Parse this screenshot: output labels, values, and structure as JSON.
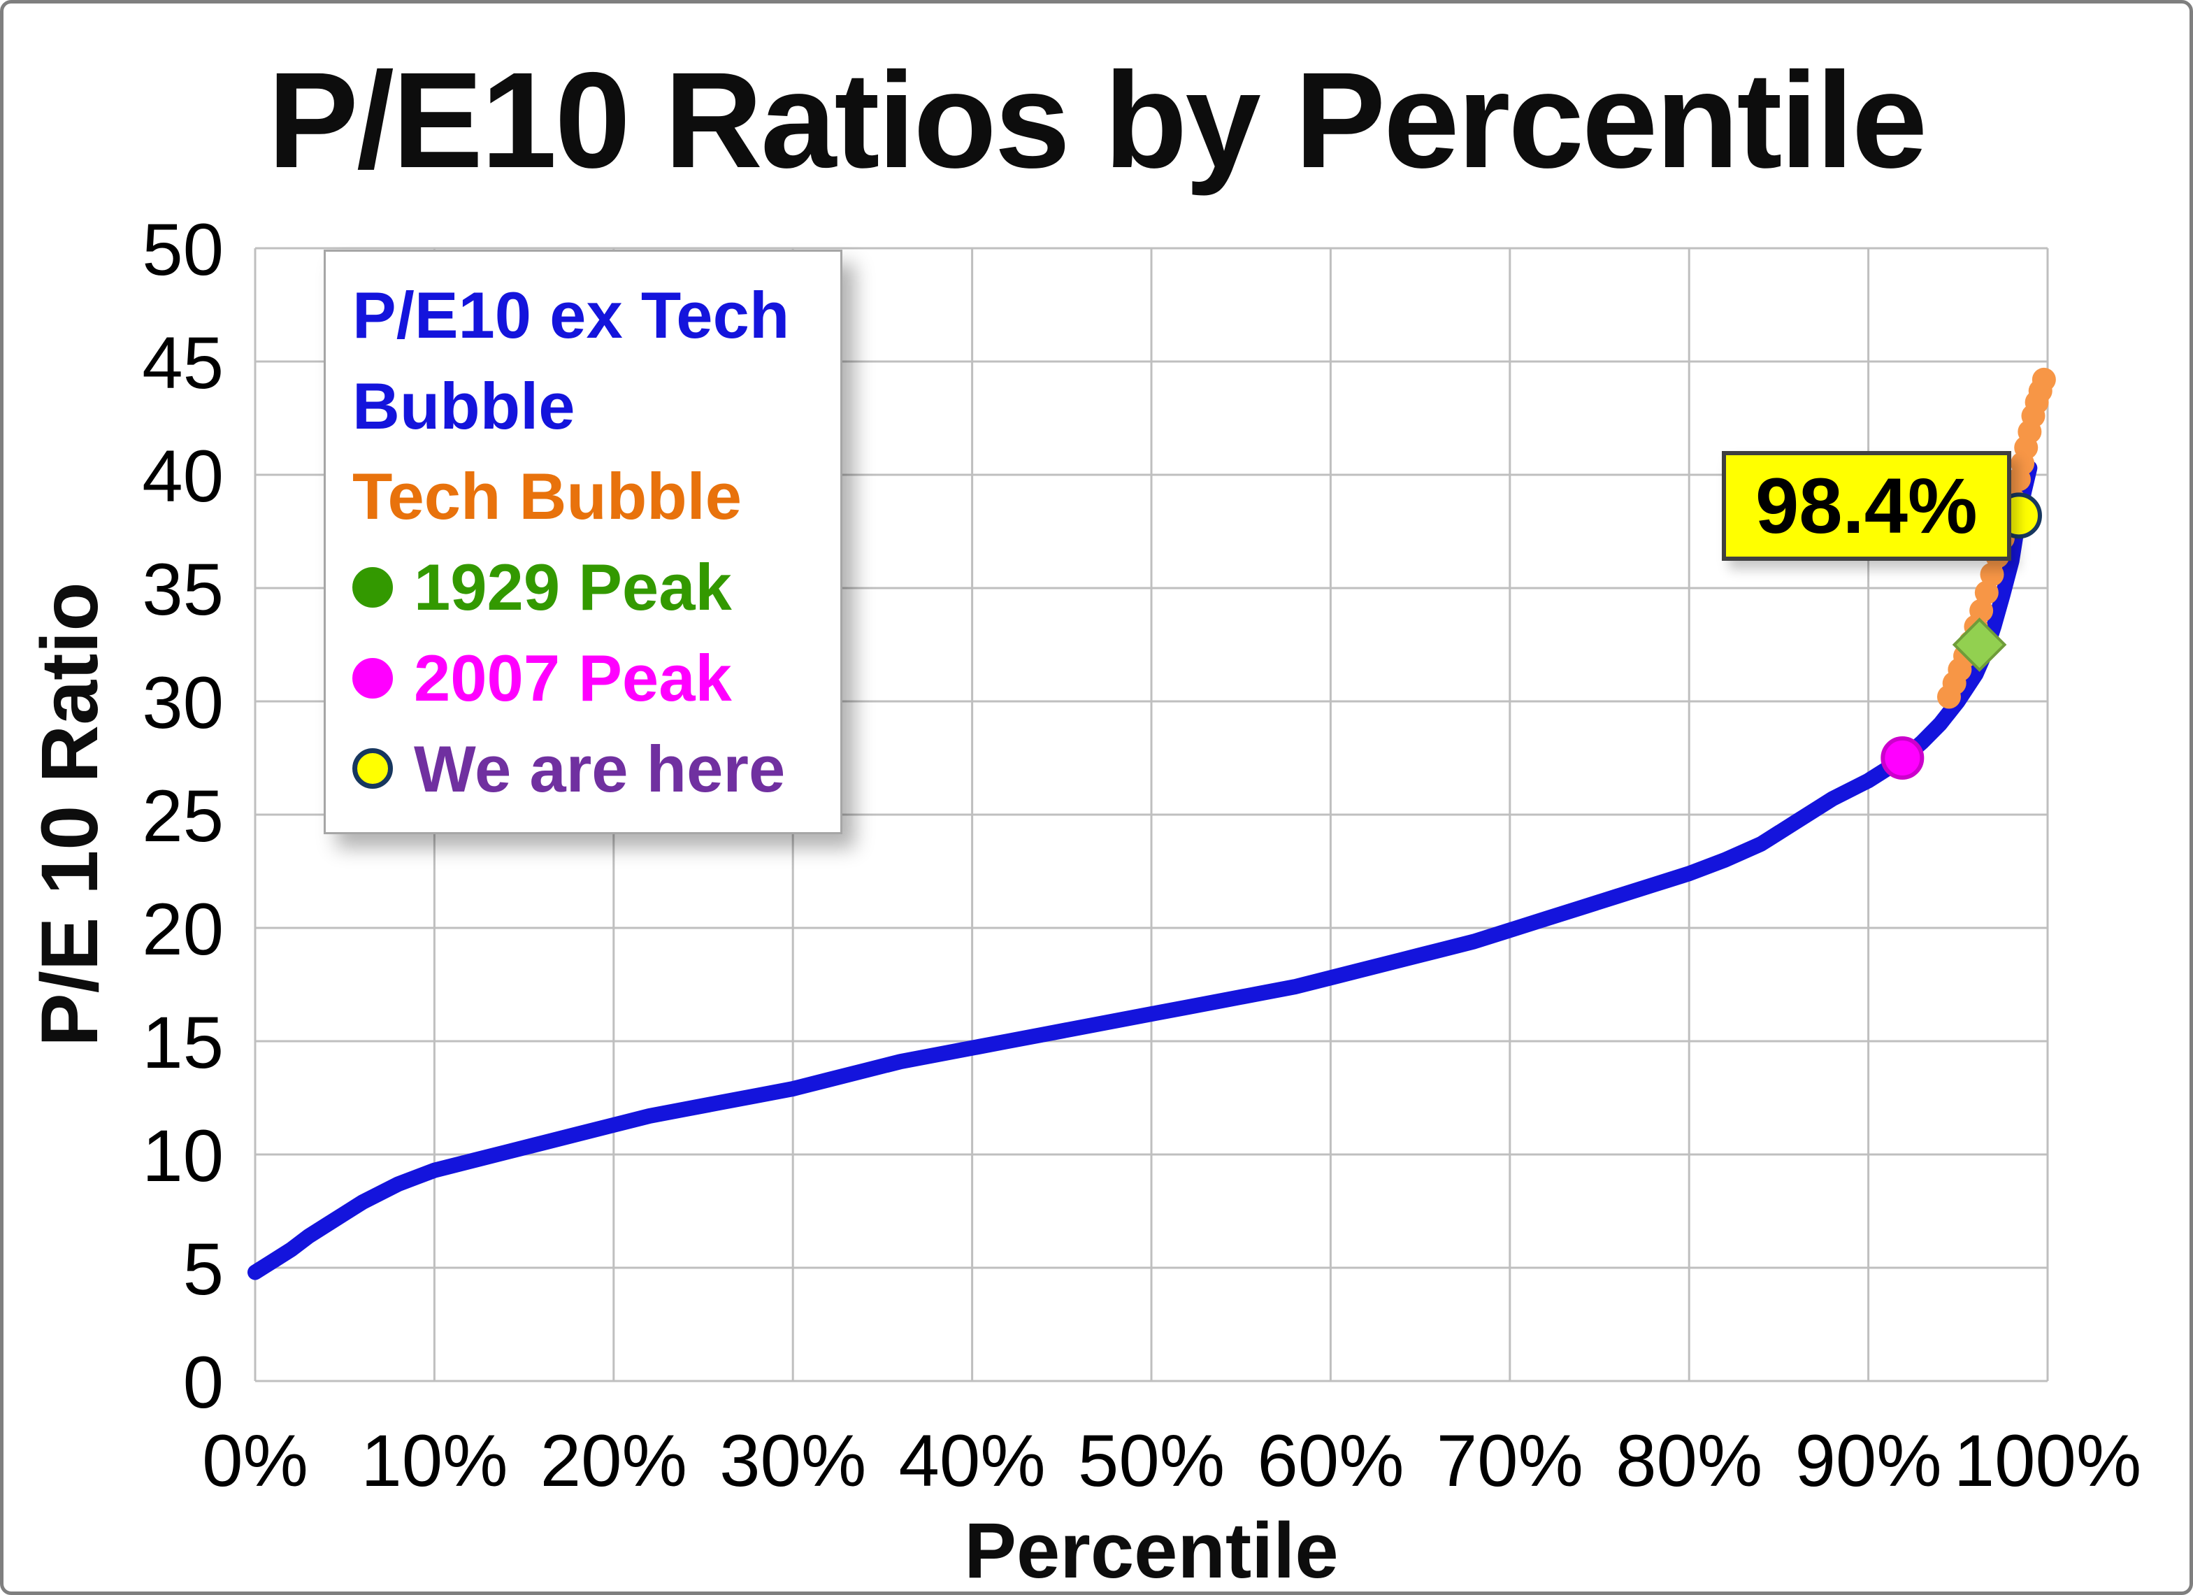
{
  "legend": {
    "items": [
      {
        "label": "P/E10 ex Tech Bubble",
        "color": "#1414dc",
        "marker": "none"
      },
      {
        "label": "Tech Bubble",
        "color": "#e8720c",
        "marker": "none"
      },
      {
        "label": "1929 Peak",
        "color": "#339900",
        "marker": "circle",
        "marker_fill": "#339900"
      },
      {
        "label": "2007 Peak",
        "color": "#ff00ff",
        "marker": "circle",
        "marker_fill": "#ff00ff"
      },
      {
        "label": "We are here",
        "color": "#7030a0",
        "marker": "circle",
        "marker_fill": "#ffff00",
        "marker_stroke": "#17375e"
      }
    ]
  },
  "chart_data": {
    "type": "scatter",
    "title": "P/E10 Ratios by Percentile",
    "xlabel": "Percentile",
    "ylabel": "P/E 10 Ratio",
    "xlim": [
      0,
      100
    ],
    "ylim": [
      0,
      50
    ],
    "grid": true,
    "grid_color": "#bfbfbf",
    "legend_position": "top-left",
    "xticks": {
      "values": [
        0,
        10,
        20,
        30,
        40,
        50,
        60,
        70,
        80,
        90,
        100
      ],
      "labels": [
        "0%",
        "10%",
        "20%",
        "30%",
        "40%",
        "50%",
        "60%",
        "70%",
        "80%",
        "90%",
        "100%"
      ]
    },
    "yticks": {
      "values": [
        0,
        5,
        10,
        15,
        20,
        25,
        30,
        35,
        40,
        45,
        50
      ],
      "labels": [
        "0",
        "5",
        "10",
        "15",
        "20",
        "25",
        "30",
        "35",
        "40",
        "45",
        "50"
      ]
    },
    "series": [
      {
        "name": "P/E10 ex Tech Bubble",
        "color": "#1414dc",
        "style": "thick-line",
        "points": [
          [
            0,
            4.8
          ],
          [
            1,
            5.3
          ],
          [
            2,
            5.8
          ],
          [
            3,
            6.4
          ],
          [
            4,
            6.9
          ],
          [
            5,
            7.4
          ],
          [
            6,
            7.9
          ],
          [
            7,
            8.3
          ],
          [
            8,
            8.7
          ],
          [
            9,
            9.0
          ],
          [
            10,
            9.3
          ],
          [
            12,
            9.7
          ],
          [
            14,
            10.1
          ],
          [
            16,
            10.5
          ],
          [
            18,
            10.9
          ],
          [
            20,
            11.3
          ],
          [
            22,
            11.7
          ],
          [
            24,
            12.0
          ],
          [
            26,
            12.3
          ],
          [
            28,
            12.6
          ],
          [
            30,
            12.9
          ],
          [
            32,
            13.3
          ],
          [
            34,
            13.7
          ],
          [
            36,
            14.1
          ],
          [
            38,
            14.4
          ],
          [
            40,
            14.7
          ],
          [
            42,
            15.0
          ],
          [
            44,
            15.3
          ],
          [
            46,
            15.6
          ],
          [
            48,
            15.9
          ],
          [
            50,
            16.2
          ],
          [
            52,
            16.5
          ],
          [
            54,
            16.8
          ],
          [
            56,
            17.1
          ],
          [
            58,
            17.4
          ],
          [
            60,
            17.8
          ],
          [
            62,
            18.2
          ],
          [
            64,
            18.6
          ],
          [
            66,
            19.0
          ],
          [
            68,
            19.4
          ],
          [
            70,
            19.9
          ],
          [
            72,
            20.4
          ],
          [
            74,
            20.9
          ],
          [
            76,
            21.4
          ],
          [
            78,
            21.9
          ],
          [
            80,
            22.4
          ],
          [
            82,
            23.0
          ],
          [
            84,
            23.7
          ],
          [
            86,
            24.7
          ],
          [
            88,
            25.7
          ],
          [
            90,
            26.5
          ],
          [
            91,
            27.0
          ],
          [
            92,
            27.5
          ],
          [
            93,
            28.2
          ],
          [
            94,
            29.0
          ],
          [
            95,
            30.0
          ],
          [
            96,
            31.2
          ],
          [
            96.5,
            32.1
          ],
          [
            97,
            33.3
          ],
          [
            97.5,
            34.7
          ],
          [
            98,
            36.2
          ],
          [
            98.4,
            38.2
          ],
          [
            98.7,
            39.3
          ],
          [
            99,
            40.3
          ]
        ]
      },
      {
        "name": "Tech Bubble",
        "color": "#f79646",
        "style": "dots",
        "points": [
          [
            94.5,
            30.2
          ],
          [
            94.8,
            30.8
          ],
          [
            95.1,
            31.4
          ],
          [
            95.4,
            32.0
          ],
          [
            95.7,
            32.6
          ],
          [
            96.0,
            33.3
          ],
          [
            96.3,
            34.0
          ],
          [
            96.6,
            34.8
          ],
          [
            96.9,
            35.6
          ],
          [
            97.2,
            36.4
          ],
          [
            97.5,
            37.2
          ],
          [
            97.8,
            38.1
          ],
          [
            98.1,
            38.9
          ],
          [
            98.4,
            39.8
          ],
          [
            98.6,
            40.5
          ],
          [
            98.8,
            41.2
          ],
          [
            99.0,
            41.9
          ],
          [
            99.2,
            42.6
          ],
          [
            99.4,
            43.2
          ],
          [
            99.6,
            43.7
          ],
          [
            99.8,
            44.2
          ]
        ]
      }
    ],
    "markers": [
      {
        "name": "1929 Peak",
        "shape": "diamond",
        "x": 96.2,
        "y": 32.5,
        "fill": "#92d050",
        "stroke": "#6f9c3a"
      },
      {
        "name": "2007 Peak",
        "shape": "circle",
        "x": 91.9,
        "y": 27.5,
        "r": 28,
        "fill": "#ff00ff",
        "stroke": "#cc00cc"
      },
      {
        "name": "We are here",
        "shape": "circle",
        "x": 98.4,
        "y": 38.2,
        "r": 30,
        "fill": "#ffff00",
        "stroke": "#17375e"
      }
    ],
    "annotation": {
      "text": "98.4%",
      "x": 98.4,
      "y": 38.2,
      "bg": "#ffff00",
      "border_color": "#404040"
    }
  }
}
